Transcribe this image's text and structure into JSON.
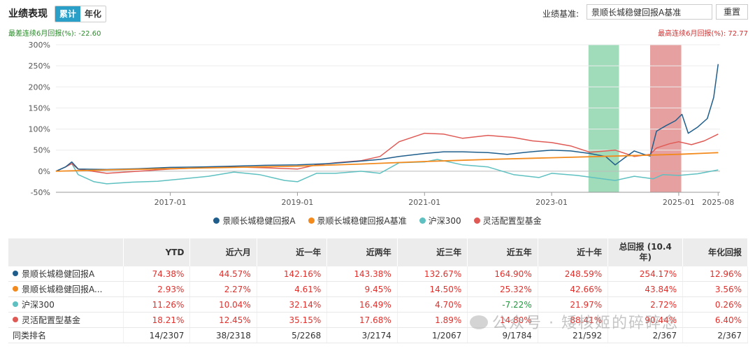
{
  "header": {
    "title": "业绩表现",
    "tabs": [
      {
        "label": "累计",
        "active": true
      },
      {
        "label": "年化",
        "active": false
      }
    ],
    "benchmark_label": "业绩基准:",
    "benchmark_value": "景顺长城稳健回报A基准",
    "reset_label": "重置"
  },
  "annotations": {
    "worst": "最差连续6月回报(%): -22.60",
    "best": "最高连续6月回报(%): 72.77"
  },
  "colors": {
    "fund": "#1f5e8c",
    "benchmark": "#f28a1e",
    "hs300": "#5ec0c0",
    "peer": "#df5a55",
    "worst_band": "#8fd6ae",
    "best_band": "#e38f8f"
  },
  "chart_data": {
    "type": "line",
    "ylim": [
      -50,
      300
    ],
    "y_ticks": [
      -50,
      0,
      50,
      100,
      150,
      200,
      250,
      300
    ],
    "y_tick_labels": [
      "-50%",
      "0%",
      "50%",
      "100%",
      "150%",
      "200%",
      "250%",
      "300%"
    ],
    "x_range": [
      2015.2,
      2025.65
    ],
    "x_ticks": [
      {
        "x": 2017.0,
        "label": "2017-01"
      },
      {
        "x": 2019.0,
        "label": "2019-01"
      },
      {
        "x": 2021.0,
        "label": "2021-01"
      },
      {
        "x": 2023.0,
        "label": "2023-01"
      },
      {
        "x": 2025.0,
        "label": "2025-01"
      },
      {
        "x": 2025.62,
        "label": "2025-08"
      }
    ],
    "bands": [
      {
        "type": "worst",
        "x0": 2023.58,
        "x1": 2024.06
      },
      {
        "type": "best",
        "x0": 2024.55,
        "x1": 2025.04
      }
    ],
    "series": [
      {
        "name": "景顺长城稳健回报A",
        "color_key": "fund",
        "points": [
          [
            2015.2,
            0
          ],
          [
            2015.35,
            10
          ],
          [
            2015.45,
            22
          ],
          [
            2015.55,
            5
          ],
          [
            2016.0,
            4
          ],
          [
            2016.5,
            6
          ],
          [
            2017.0,
            9
          ],
          [
            2017.5,
            10
          ],
          [
            2018.0,
            12
          ],
          [
            2018.5,
            14
          ],
          [
            2019.0,
            15
          ],
          [
            2019.5,
            18
          ],
          [
            2020.0,
            24
          ],
          [
            2020.3,
            28
          ],
          [
            2020.6,
            35
          ],
          [
            2021.0,
            42
          ],
          [
            2021.3,
            46
          ],
          [
            2021.6,
            46
          ],
          [
            2022.0,
            44
          ],
          [
            2022.3,
            40
          ],
          [
            2022.6,
            45
          ],
          [
            2023.0,
            50
          ],
          [
            2023.3,
            48
          ],
          [
            2023.6,
            42
          ],
          [
            2023.85,
            35
          ],
          [
            2024.0,
            15
          ],
          [
            2024.15,
            32
          ],
          [
            2024.3,
            48
          ],
          [
            2024.45,
            40
          ],
          [
            2024.55,
            36
          ],
          [
            2024.65,
            95
          ],
          [
            2024.8,
            108
          ],
          [
            2024.95,
            120
          ],
          [
            2025.05,
            135
          ],
          [
            2025.15,
            90
          ],
          [
            2025.3,
            105
          ],
          [
            2025.45,
            125
          ],
          [
            2025.55,
            175
          ],
          [
            2025.62,
            254
          ]
        ]
      },
      {
        "name": "景顺长城稳健回报A基准",
        "color_key": "benchmark",
        "points": [
          [
            2015.2,
            0
          ],
          [
            2016.0,
            3
          ],
          [
            2017.0,
            6
          ],
          [
            2018.0,
            9
          ],
          [
            2019.0,
            12
          ],
          [
            2020.0,
            17
          ],
          [
            2021.0,
            23
          ],
          [
            2022.0,
            28
          ],
          [
            2023.0,
            32
          ],
          [
            2024.0,
            36
          ],
          [
            2025.0,
            40
          ],
          [
            2025.62,
            44
          ]
        ]
      },
      {
        "name": "沪深300",
        "color_key": "hs300",
        "points": [
          [
            2015.2,
            0
          ],
          [
            2015.35,
            10
          ],
          [
            2015.45,
            18
          ],
          [
            2015.55,
            -8
          ],
          [
            2015.8,
            -25
          ],
          [
            2016.0,
            -30
          ],
          [
            2016.4,
            -26
          ],
          [
            2016.8,
            -24
          ],
          [
            2017.2,
            -18
          ],
          [
            2017.6,
            -12
          ],
          [
            2018.0,
            -2
          ],
          [
            2018.4,
            -8
          ],
          [
            2018.8,
            -22
          ],
          [
            2019.0,
            -25
          ],
          [
            2019.3,
            -5
          ],
          [
            2019.6,
            -5
          ],
          [
            2020.0,
            0
          ],
          [
            2020.3,
            -5
          ],
          [
            2020.6,
            20
          ],
          [
            2021.0,
            22
          ],
          [
            2021.2,
            28
          ],
          [
            2021.6,
            15
          ],
          [
            2022.0,
            10
          ],
          [
            2022.4,
            -8
          ],
          [
            2022.8,
            -15
          ],
          [
            2023.0,
            -5
          ],
          [
            2023.4,
            -10
          ],
          [
            2023.8,
            -18
          ],
          [
            2024.0,
            -22
          ],
          [
            2024.3,
            -12
          ],
          [
            2024.6,
            -18
          ],
          [
            2024.75,
            -8
          ],
          [
            2025.0,
            -10
          ],
          [
            2025.3,
            -6
          ],
          [
            2025.62,
            3
          ]
        ]
      },
      {
        "name": "灵活配置型基金",
        "color_key": "peer",
        "points": [
          [
            2015.2,
            0
          ],
          [
            2015.35,
            10
          ],
          [
            2015.45,
            18
          ],
          [
            2015.55,
            5
          ],
          [
            2016.0,
            -5
          ],
          [
            2016.5,
            0
          ],
          [
            2017.0,
            5
          ],
          [
            2017.5,
            8
          ],
          [
            2018.0,
            10
          ],
          [
            2018.5,
            8
          ],
          [
            2019.0,
            5
          ],
          [
            2019.3,
            15
          ],
          [
            2019.6,
            20
          ],
          [
            2020.0,
            25
          ],
          [
            2020.3,
            35
          ],
          [
            2020.6,
            70
          ],
          [
            2021.0,
            90
          ],
          [
            2021.3,
            88
          ],
          [
            2021.6,
            78
          ],
          [
            2022.0,
            85
          ],
          [
            2022.4,
            80
          ],
          [
            2022.7,
            72
          ],
          [
            2023.0,
            68
          ],
          [
            2023.3,
            60
          ],
          [
            2023.6,
            45
          ],
          [
            2024.0,
            50
          ],
          [
            2024.3,
            35
          ],
          [
            2024.55,
            40
          ],
          [
            2024.65,
            55
          ],
          [
            2024.85,
            65
          ],
          [
            2025.0,
            70
          ],
          [
            2025.2,
            63
          ],
          [
            2025.4,
            72
          ],
          [
            2025.62,
            88
          ]
        ]
      }
    ]
  },
  "table": {
    "headers": [
      "YTD",
      "近六月",
      "近一年",
      "近两年",
      "近三年",
      "近五年",
      "近十年",
      "总回报 (10.4年)",
      "年化回报"
    ],
    "rows": [
      {
        "name": "景顺长城稳健回报A",
        "color_key": "fund",
        "values": [
          "74.38%",
          "44.57%",
          "142.16%",
          "143.38%",
          "132.67%",
          "164.90%",
          "248.59%",
          "254.17%",
          "12.96%"
        ]
      },
      {
        "name": "景顺长城稳健回报A...",
        "color_key": "benchmark",
        "values": [
          "2.93%",
          "2.27%",
          "4.61%",
          "9.45%",
          "14.50%",
          "25.32%",
          "42.66%",
          "43.84%",
          "3.56%"
        ]
      },
      {
        "name": "沪深300",
        "color_key": "hs300",
        "values": [
          "11.26%",
          "10.04%",
          "32.14%",
          "16.49%",
          "4.70%",
          "-7.22%",
          "21.97%",
          "2.72%",
          "0.26%"
        ]
      },
      {
        "name": "灵活配置型基金",
        "color_key": "peer",
        "values": [
          "18.21%",
          "12.45%",
          "35.15%",
          "17.68%",
          "1.89%",
          "14.80%",
          "88.41%",
          "90.44%",
          "6.40%"
        ]
      },
      {
        "name": "同类排名",
        "color_key": "",
        "values": [
          "14/2307",
          "38/2318",
          "5/2268",
          "3/2174",
          "1/2067",
          "9/1784",
          "21/592",
          "2/367",
          "2/367"
        ]
      }
    ]
  },
  "watermark": "公众号 · 矮核姬的碎碎念"
}
